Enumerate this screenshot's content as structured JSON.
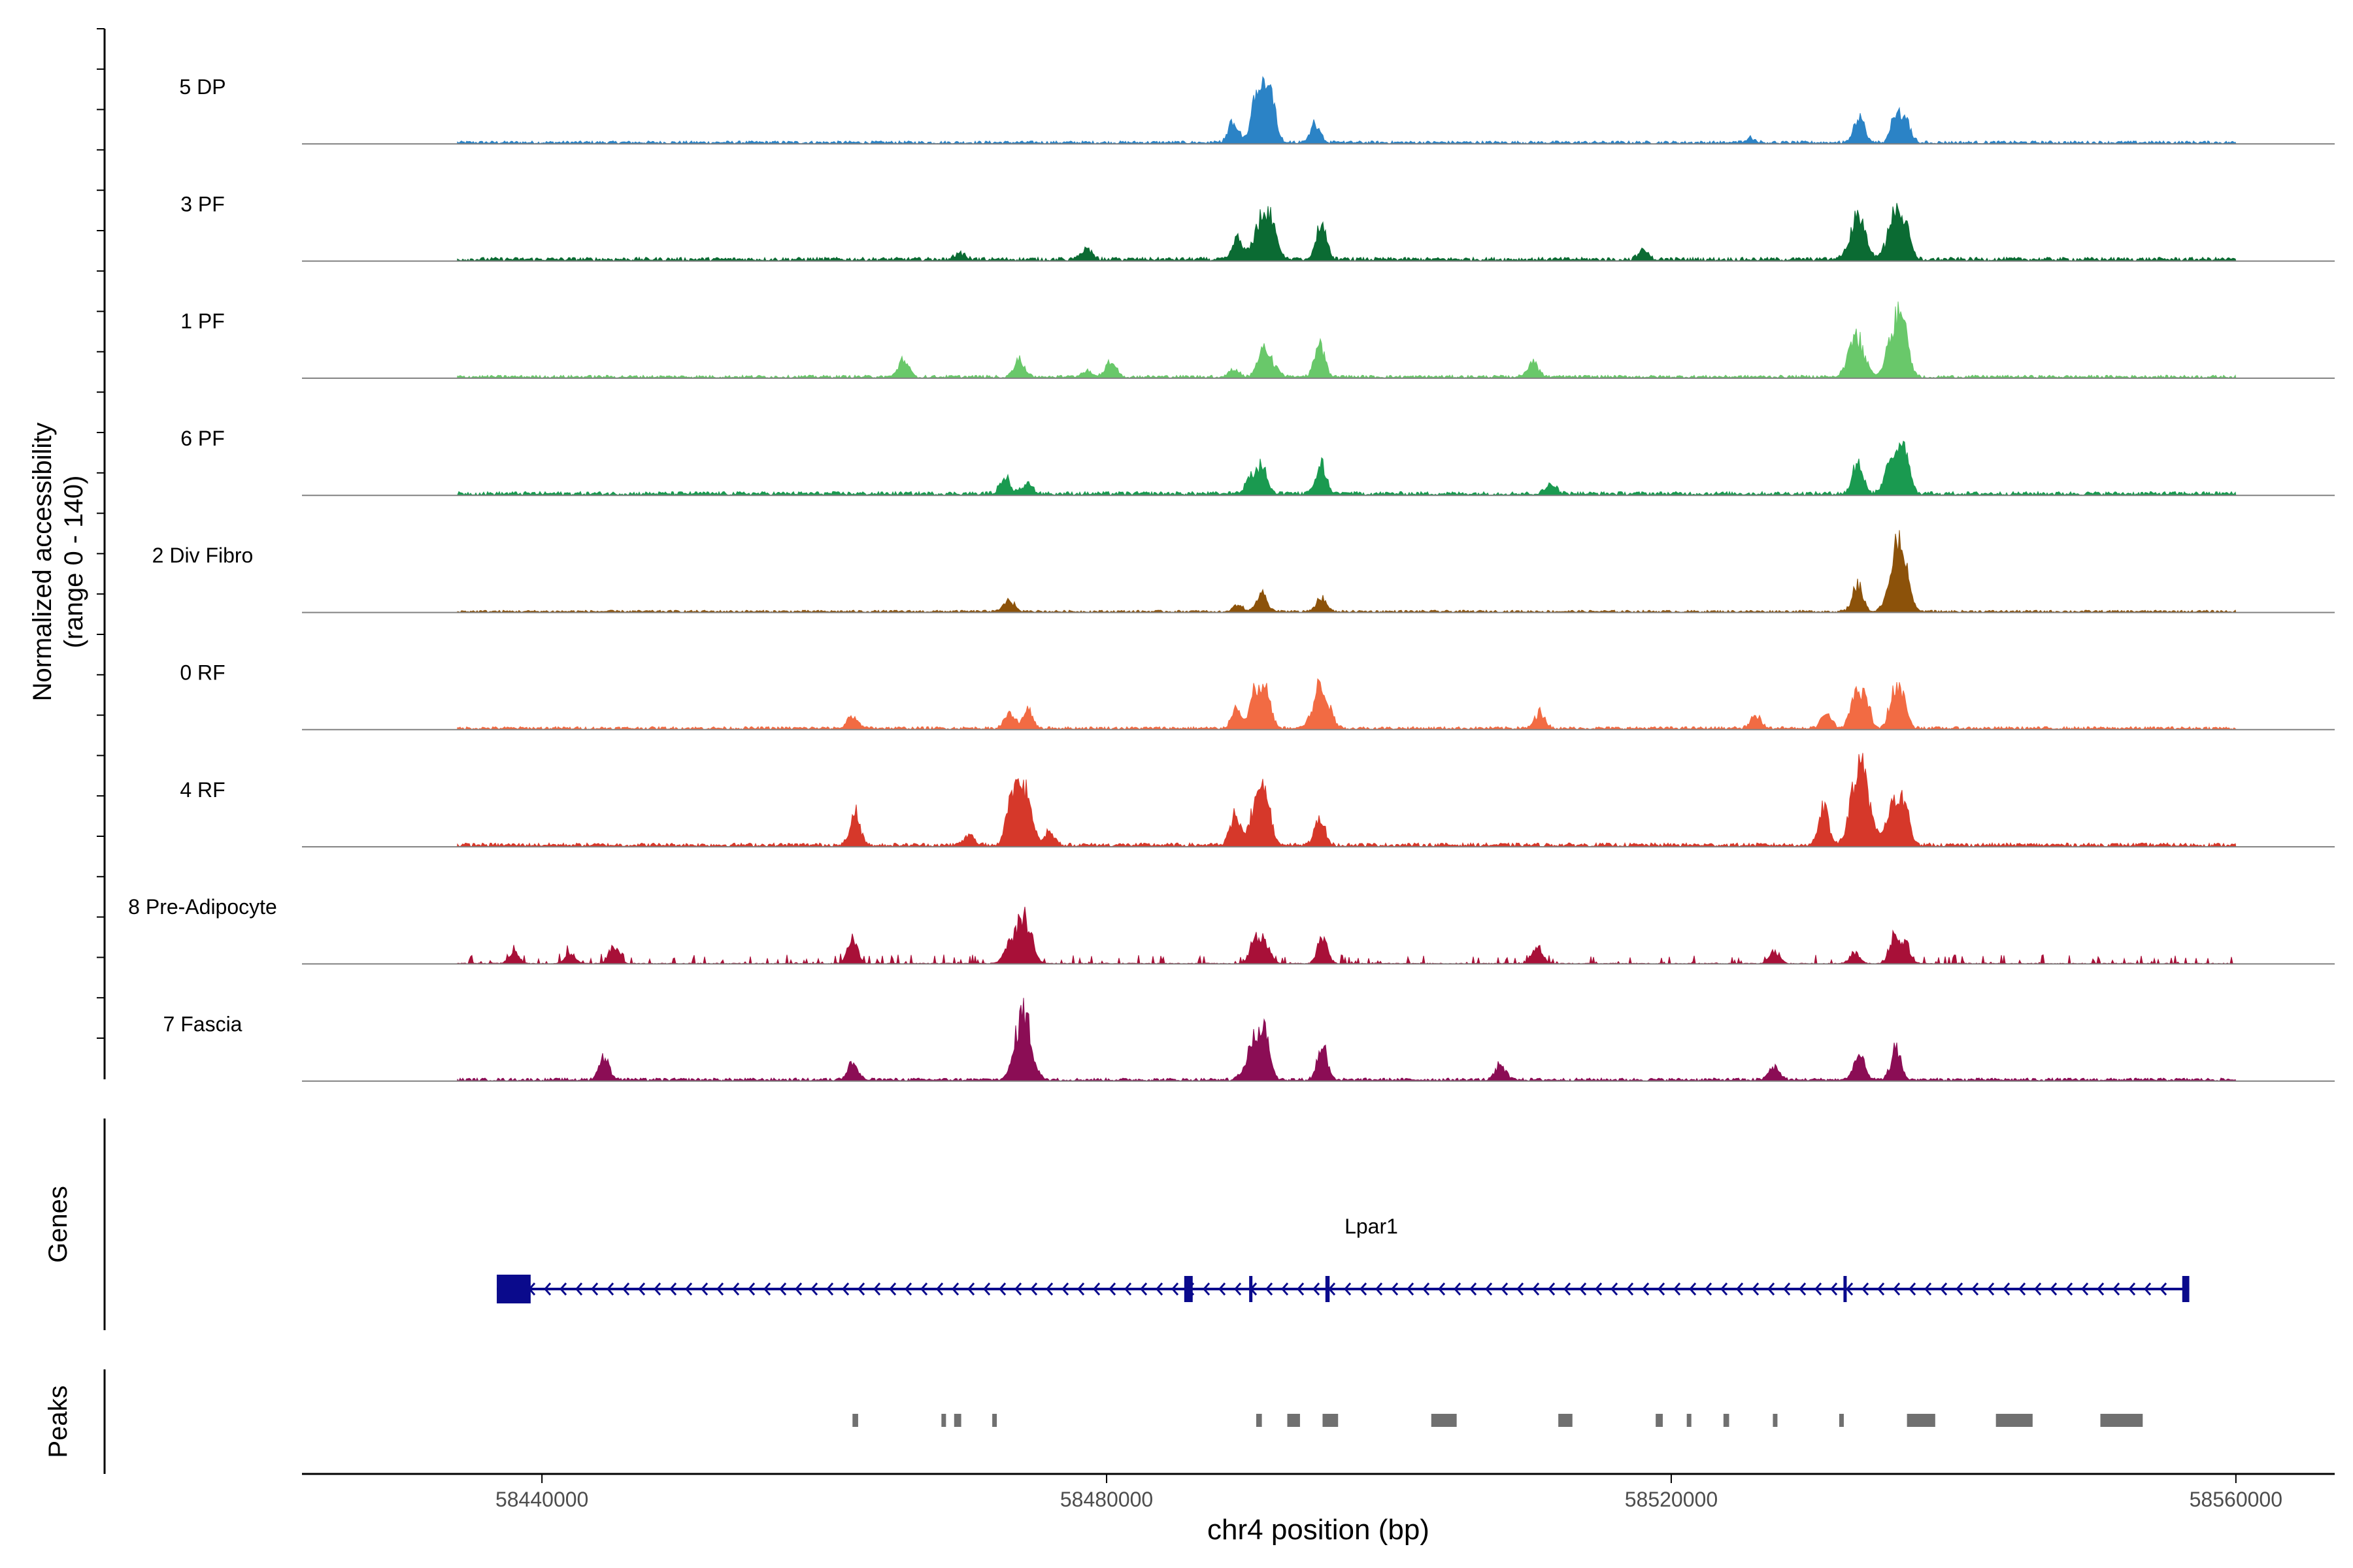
{
  "chart_data": {
    "type": "area",
    "title": "",
    "ylabel_line1": "Normalized accessibility",
    "ylabel_line2": "(range 0 - 140)",
    "xlabel": "chr4 position (bp)",
    "xlim": [
      58423000,
      58567000
    ],
    "ylim": [
      0,
      140
    ],
    "x_ticks": [
      58440000,
      58480000,
      58520000,
      58560000
    ],
    "x_tick_labels": [
      "58440000",
      "58480000",
      "58520000",
      "58560000"
    ],
    "tracks": [
      {
        "name": "5 DP",
        "color": "#2b83c6",
        "noise": 4,
        "peaks": [
          [
            58489000,
            35
          ],
          [
            58490600,
            50
          ],
          [
            58491200,
            65
          ],
          [
            58491600,
            45
          ],
          [
            58494800,
            32
          ],
          [
            58525600,
            8
          ],
          [
            58533300,
            45
          ],
          [
            58535900,
            40
          ],
          [
            58536600,
            37
          ]
        ]
      },
      {
        "name": "3 PF",
        "color": "#0b6b33",
        "noise": 5,
        "peaks": [
          [
            58489300,
            35
          ],
          [
            58491000,
            65
          ],
          [
            58491800,
            40
          ],
          [
            58495200,
            60
          ],
          [
            58478600,
            18
          ],
          [
            58469600,
            10
          ],
          [
            58533200,
            70
          ],
          [
            58535900,
            75
          ],
          [
            58536700,
            30
          ],
          [
            58518000,
            14
          ]
        ]
      },
      {
        "name": "1 PF",
        "color": "#69c86a",
        "noise": 4,
        "peaks": [
          [
            58489000,
            12
          ],
          [
            58491000,
            45
          ],
          [
            58491800,
            22
          ],
          [
            58495100,
            55
          ],
          [
            58473800,
            30
          ],
          [
            58480300,
            28
          ],
          [
            58465600,
            28
          ],
          [
            58510200,
            28
          ],
          [
            58533100,
            68
          ],
          [
            58535900,
            85
          ],
          [
            58536500,
            45
          ],
          [
            58478600,
            10
          ]
        ]
      },
      {
        "name": "6 PF",
        "color": "#1a9a50",
        "noise": 5,
        "peaks": [
          [
            58472800,
            28
          ],
          [
            58474400,
            18
          ],
          [
            58490200,
            30
          ],
          [
            58491000,
            45
          ],
          [
            58495200,
            48
          ],
          [
            58533200,
            55
          ],
          [
            58535900,
            80
          ],
          [
            58536600,
            40
          ],
          [
            58511500,
            18
          ]
        ]
      },
      {
        "name": "2 Div Fibro",
        "color": "#8c520a",
        "noise": 3,
        "peaks": [
          [
            58473100,
            20
          ],
          [
            58491000,
            30
          ],
          [
            58495200,
            22
          ],
          [
            58533200,
            45
          ],
          [
            58536000,
            105
          ],
          [
            58536600,
            30
          ],
          [
            58489300,
            10
          ]
        ]
      },
      {
        "name": "0 RF",
        "color": "#f26b43",
        "noise": 4,
        "peaks": [
          [
            58489200,
            30
          ],
          [
            58490500,
            58
          ],
          [
            58491300,
            60
          ],
          [
            58495200,
            72
          ],
          [
            58473100,
            25
          ],
          [
            58474400,
            30
          ],
          [
            58462000,
            20
          ],
          [
            58510700,
            28
          ],
          [
            58533000,
            45
          ],
          [
            58533700,
            55
          ],
          [
            58535800,
            60
          ],
          [
            58536400,
            42
          ],
          [
            58531000,
            25
          ],
          [
            58526000,
            20
          ]
        ]
      },
      {
        "name": "4 RF",
        "color": "#d6382a",
        "noise": 5,
        "peaks": [
          [
            58462200,
            55
          ],
          [
            58470300,
            18
          ],
          [
            58473200,
            60
          ],
          [
            58474100,
            95
          ],
          [
            58476000,
            22
          ],
          [
            58489100,
            50
          ],
          [
            58490700,
            70
          ],
          [
            58491300,
            55
          ],
          [
            58495100,
            45
          ],
          [
            58530800,
            60
          ],
          [
            58533200,
            90
          ],
          [
            58533700,
            65
          ],
          [
            58535800,
            65
          ],
          [
            58536600,
            45
          ]
        ]
      },
      {
        "name": "8 Pre-Adipocyte",
        "color": "#a81038",
        "noise": 3,
        "spiky": true,
        "peaks": [
          [
            58445100,
            30
          ],
          [
            58462000,
            40
          ],
          [
            58474100,
            80
          ],
          [
            58473000,
            25
          ],
          [
            58438000,
            18
          ],
          [
            58442000,
            18
          ],
          [
            58490500,
            40
          ],
          [
            58491300,
            30
          ],
          [
            58495300,
            40
          ],
          [
            58510500,
            28
          ],
          [
            58527300,
            20
          ],
          [
            58533000,
            18
          ],
          [
            58535800,
            45
          ],
          [
            58536600,
            30
          ]
        ]
      },
      {
        "name": "7 Fascia",
        "color": "#8b0d55",
        "noise": 4,
        "peaks": [
          [
            58444400,
            40
          ],
          [
            58462000,
            28
          ],
          [
            58474100,
            115
          ],
          [
            58490500,
            70
          ],
          [
            58491300,
            55
          ],
          [
            58495300,
            58
          ],
          [
            58507900,
            25
          ],
          [
            58533300,
            42
          ],
          [
            58535900,
            50
          ],
          [
            58527300,
            22
          ]
        ]
      }
    ]
  },
  "genes": {
    "title": "Genes",
    "gene_label": "Lpar1",
    "gene_start": 58436800,
    "gene_end": 58556700,
    "strand": "-",
    "color": "#0a0a8c",
    "exons": [
      [
        58436800,
        58439200
      ],
      [
        58485500,
        58486100
      ],
      [
        58490100,
        58490300
      ],
      [
        58495500,
        58495800
      ],
      [
        58532200,
        58532400
      ],
      [
        58556200,
        58556700
      ]
    ]
  },
  "peaks_track": {
    "title": "Peaks",
    "color": "#707070",
    "regions": [
      [
        58462000,
        58462400
      ],
      [
        58468300,
        58468600
      ],
      [
        58469200,
        58469700
      ],
      [
        58471900,
        58472200
      ],
      [
        58490600,
        58491000
      ],
      [
        58492800,
        58493700
      ],
      [
        58495300,
        58496400
      ],
      [
        58503000,
        58504800
      ],
      [
        58512000,
        58513000
      ],
      [
        58518900,
        58519400
      ],
      [
        58521100,
        58521300
      ],
      [
        58523700,
        58524100
      ],
      [
        58527200,
        58527500
      ],
      [
        58531900,
        58532200
      ],
      [
        58536700,
        58538700
      ],
      [
        58543000,
        58545600
      ],
      [
        58550400,
        58553400
      ]
    ]
  }
}
